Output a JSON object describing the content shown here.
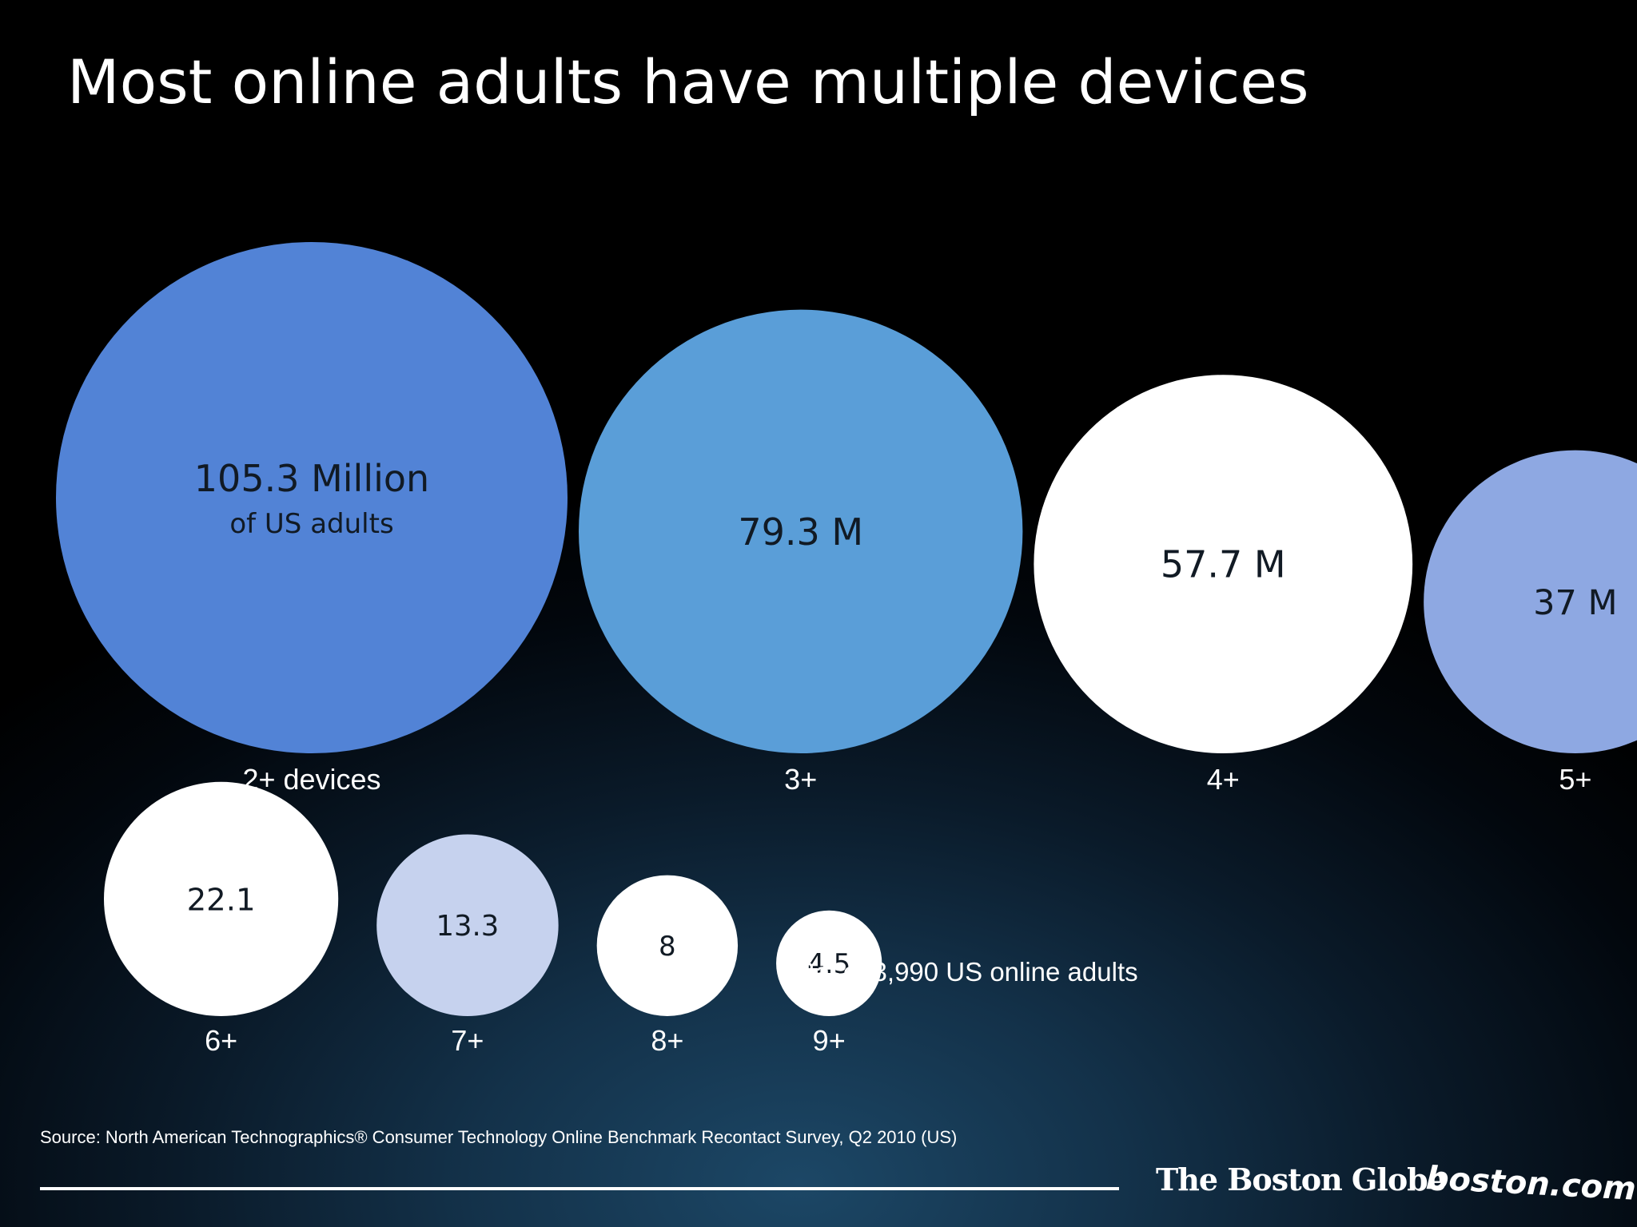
{
  "title": "Most online adults have multiple devices",
  "chart_data": {
    "type": "bubble",
    "title": "Most online adults have multiple devices",
    "unit": "Million US adults",
    "categories": [
      "2+ devices",
      "3+",
      "4+",
      "5+",
      "6+",
      "7+",
      "8+",
      "9+"
    ],
    "values": [
      105.3,
      79.3,
      57.7,
      37,
      22.1,
      13.3,
      8,
      4.5
    ],
    "value_labels": [
      "105.3 Million",
      "79.3 M",
      "57.7 M",
      "37 M",
      "22.1",
      "13.3",
      "8",
      "4.5"
    ],
    "first_value_sublabel": "of US adults",
    "colors": [
      "#5283d6",
      "#5a9ed8",
      "#ffffff",
      "#8ea8e2",
      "#ffffff",
      "#c6d2ee",
      "#ffffff",
      "#ffffff"
    ],
    "legend": "none",
    "grid": false
  },
  "base_note": "Base: 3,990 US online adults",
  "source": "Source: North American Technographics® Consumer Technology Online Benchmark Recontact Survey, Q2 2010 (US)",
  "logos": {
    "boston_globe": "The Boston Globe",
    "boston_com": "boston.com"
  }
}
